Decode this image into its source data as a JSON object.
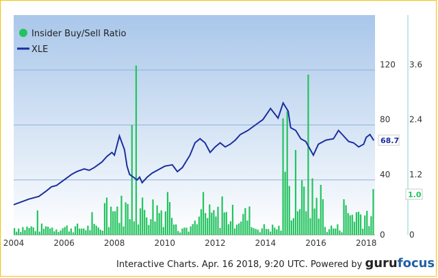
{
  "chart_data": {
    "type": "bar+line",
    "legend": {
      "placement": "top-left",
      "entries": [
        {
          "name": "Insider Buy/Sell Ratio",
          "color": "#22c35e",
          "marker": "circle"
        },
        {
          "name": "XLE",
          "color": "#1a2f9e",
          "marker": "line"
        }
      ]
    },
    "x_axis": {
      "ticks": [
        "2004",
        "2006",
        "2008",
        "2010",
        "2012",
        "2014",
        "2016",
        "2018"
      ],
      "range": [
        2004.0,
        2018.35
      ]
    },
    "y_axis_left": {
      "ticks": [
        "0",
        "40",
        "80",
        "120"
      ],
      "range": [
        0,
        160
      ]
    },
    "y_axis_right": {
      "ticks": [
        "0",
        "1.2",
        "2.4",
        "3.6"
      ],
      "range": [
        0,
        4.8
      ]
    },
    "last_value_labels": {
      "xle": "68.7",
      "ratio": "1.0"
    },
    "grid": "horizontal",
    "xle_series": {
      "name": "XLE",
      "x": [
        2004.0,
        2004.3,
        2004.6,
        2005.0,
        2005.3,
        2005.5,
        2005.7,
        2006.0,
        2006.3,
        2006.5,
        2006.8,
        2007.0,
        2007.2,
        2007.5,
        2007.7,
        2007.9,
        2008.0,
        2008.2,
        2008.4,
        2008.5,
        2008.6,
        2008.75,
        2008.9,
        2009.0,
        2009.1,
        2009.3,
        2009.5,
        2009.8,
        2010.0,
        2010.3,
        2010.5,
        2010.7,
        2011.0,
        2011.2,
        2011.4,
        2011.6,
        2011.8,
        2012.0,
        2012.2,
        2012.4,
        2012.6,
        2012.8,
        2013.0,
        2013.3,
        2013.6,
        2013.9,
        2014.2,
        2014.5,
        2014.7,
        2014.9,
        2015.0,
        2015.2,
        2015.4,
        2015.6,
        2015.9,
        2016.1,
        2016.4,
        2016.7,
        2016.9,
        2017.1,
        2017.3,
        2017.5,
        2017.7,
        2017.9,
        2018.0,
        2018.15,
        2018.3
      ],
      "values": [
        22,
        24,
        26,
        28,
        32,
        35,
        36,
        40,
        44,
        46,
        48,
        47,
        49,
        53,
        57,
        60,
        58,
        72,
        62,
        50,
        44,
        42,
        40,
        42,
        38,
        42,
        45,
        48,
        50,
        51,
        46,
        49,
        58,
        67,
        70,
        67,
        60,
        64,
        67,
        64,
        66,
        69,
        73,
        76,
        80,
        84,
        92,
        85,
        96,
        90,
        78,
        76,
        70,
        68,
        58,
        66,
        69,
        70,
        76,
        72,
        68,
        67,
        64,
        66,
        71,
        73,
        68.7
      ]
    },
    "ratio_series": {
      "name": "Insider Buy/Sell Ratio",
      "approx_monthly_values": "see bars",
      "peaks": [
        {
          "x": 2008.8,
          "value": 3.7
        },
        {
          "x": 2015.7,
          "value": 3.5
        },
        {
          "x": 2014.85,
          "value": 2.7
        },
        {
          "x": 2008.7,
          "value": 2.4
        }
      ],
      "last_value": 1.0
    }
  },
  "footer": {
    "text": "Interactive Charts. Apr. 16 2018, 9:20 UTC. Powered by",
    "logo_part1": "guru",
    "logo_part2": "focus"
  }
}
